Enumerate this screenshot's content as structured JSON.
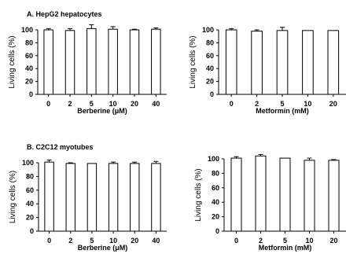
{
  "panels": [
    {
      "title": "A. HepG2 hepatocytes"
    },
    {
      "title": "B. C2C12 myotubes"
    }
  ],
  "chart_data": [
    {
      "type": "bar",
      "categories": [
        "0",
        "2",
        "5",
        "10",
        "20",
        "40"
      ],
      "values": [
        100,
        99,
        102,
        101,
        100,
        101
      ],
      "errors": [
        2,
        3,
        6,
        4,
        1,
        2
      ],
      "xlabel": "Berberine (μM)",
      "ylabel": "Living cells (%)",
      "ylim": [
        0,
        100
      ],
      "yticks": [
        0,
        20,
        40,
        60,
        80,
        100
      ],
      "bar_color": "#ffffff",
      "grid": false
    },
    {
      "type": "bar",
      "categories": [
        "0",
        "2",
        "5",
        "10",
        "20"
      ],
      "values": [
        100,
        98,
        99,
        99,
        99
      ],
      "errors": [
        2,
        2,
        5,
        0,
        0
      ],
      "xlabel": "Metformin (mM)",
      "ylabel": "Living cells (%)",
      "ylim": [
        0,
        100
      ],
      "yticks": [
        0,
        20,
        40,
        60,
        80,
        100
      ],
      "bar_color": "#ffffff",
      "grid": false
    },
    {
      "type": "bar",
      "categories": [
        "0",
        "2",
        "5",
        "10",
        "20",
        "40"
      ],
      "values": [
        101,
        99,
        99,
        99,
        99,
        99
      ],
      "errors": [
        3,
        1,
        0,
        2,
        2,
        3
      ],
      "xlabel": "Berberine (μM)",
      "ylabel": "Living cells (%)",
      "ylim": [
        0,
        100
      ],
      "yticks": [
        0,
        20,
        40,
        60,
        80,
        100
      ],
      "bar_color": "#ffffff",
      "grid": false
    },
    {
      "type": "bar",
      "categories": [
        "0",
        "2",
        "5",
        "10",
        "20"
      ],
      "values": [
        101,
        104,
        101,
        98,
        98
      ],
      "errors": [
        2,
        2,
        0,
        3,
        1
      ],
      "xlabel": "Metformin (mM)",
      "ylabel": "Living cells (%)",
      "ylim": [
        0,
        100
      ],
      "yticks": [
        0,
        20,
        40,
        60,
        80,
        100
      ],
      "bar_color": "#ffffff",
      "grid": false
    }
  ]
}
